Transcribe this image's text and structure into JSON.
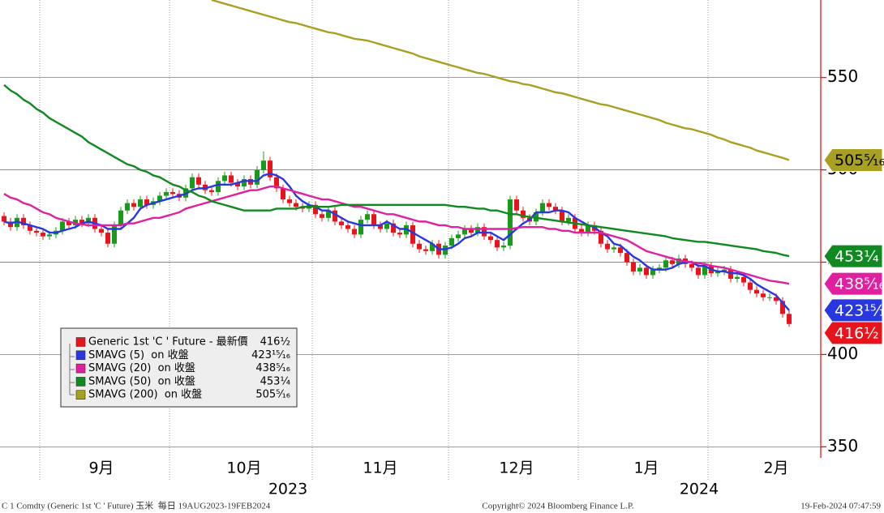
{
  "chart_data": {
    "type": "candlestick",
    "categories": [
      null,
      null,
      null,
      null,
      null,
      null,
      null,
      null,
      null,
      null,
      null,
      null,
      null,
      null,
      null,
      "9月",
      null,
      null,
      null,
      null,
      null,
      null,
      null,
      null,
      null,
      null,
      null,
      null,
      null,
      null,
      null,
      null,
      null,
      null,
      null,
      null,
      null,
      "10月",
      null,
      null,
      null,
      null,
      null,
      null,
      null,
      null,
      null,
      null,
      null,
      null,
      null,
      null,
      null,
      null,
      null,
      null,
      null,
      null,
      "11月",
      null,
      null,
      null,
      null,
      null,
      null,
      null,
      null,
      null,
      null,
      null,
      null,
      null,
      null,
      null,
      null,
      null,
      null,
      null,
      null,
      "12月",
      null,
      null,
      null,
      null,
      null,
      null,
      null,
      null,
      null,
      null,
      null,
      null,
      null,
      null,
      null,
      null,
      null,
      null,
      null,
      "1月",
      null,
      null,
      null,
      null,
      null,
      null,
      null,
      null,
      null,
      null,
      null,
      null,
      null,
      null,
      null,
      null,
      null,
      null,
      null,
      "2月",
      null,
      null
    ],
    "year_labels": [
      "2023",
      "2024"
    ],
    "ylim": [
      344,
      592
    ],
    "yticks": [
      350,
      400,
      450,
      500,
      550
    ],
    "grid": true,
    "series": [
      {
        "name": "Generic 1st 'C ' Future - 最新價",
        "type": "candlestick",
        "color": "#e8141c",
        "up_color": "#1a9a1a",
        "down_color": "#e8141c",
        "open": [
          475,
          472,
          469,
          474,
          470,
          467,
          466,
          464,
          465,
          467,
          472,
          470,
          473,
          471,
          474,
          468,
          466,
          460,
          470,
          478,
          482,
          480,
          484,
          481,
          483,
          486,
          488,
          487,
          485,
          490,
          496,
          492,
          489,
          488,
          494,
          497,
          493,
          491,
          495,
          492,
          500,
          505,
          496,
          490,
          484,
          482,
          480,
          479,
          481,
          476,
          474,
          478,
          472,
          470,
          468,
          465,
          473,
          476,
          470,
          468,
          471,
          466,
          465,
          470,
          460,
          457,
          456,
          460,
          454,
          459,
          463,
          465,
          468,
          466,
          469,
          464,
          462,
          458,
          459,
          484,
          478,
          474,
          472,
          477,
          482,
          480,
          478,
          472,
          474,
          468,
          466,
          470,
          467,
          460,
          457,
          458,
          455,
          450,
          445,
          447,
          443,
          446,
          447,
          451,
          449,
          452,
          449,
          447,
          443,
          448,
          444,
          445,
          446,
          441,
          442,
          439,
          435,
          433,
          431,
          431,
          429,
          422
        ],
        "high": [
          477,
          474,
          476,
          476,
          472,
          469,
          468,
          467,
          469,
          474,
          474,
          475,
          475,
          476,
          476,
          470,
          468,
          472,
          480,
          484,
          484,
          486,
          486,
          485,
          488,
          490,
          490,
          489,
          492,
          498,
          498,
          494,
          491,
          496,
          499,
          499,
          495,
          497,
          497,
          502,
          510,
          507,
          498,
          492,
          486,
          484,
          482,
          483,
          483,
          478,
          480,
          480,
          474,
          472,
          470,
          475,
          478,
          478,
          472,
          473,
          473,
          468,
          472,
          472,
          462,
          459,
          462,
          462,
          461,
          465,
          467,
          470,
          470,
          471,
          471,
          466,
          464,
          461,
          486,
          486,
          480,
          476,
          479,
          484,
          484,
          482,
          480,
          476,
          476,
          470,
          472,
          472,
          469,
          462,
          460,
          460,
          457,
          452,
          449,
          449,
          448,
          449,
          453,
          453,
          454,
          454,
          451,
          449,
          450,
          450,
          447,
          448,
          448,
          444,
          444,
          441,
          437,
          435,
          433,
          433,
          431,
          424
        ],
        "low": [
          470,
          467,
          467,
          468,
          465,
          464,
          462,
          462,
          463,
          465,
          468,
          468,
          469,
          469,
          466,
          464,
          458,
          458,
          468,
          476,
          478,
          478,
          479,
          479,
          481,
          484,
          485,
          483,
          483,
          488,
          490,
          487,
          486,
          486,
          492,
          491,
          489,
          489,
          490,
          490,
          498,
          494,
          488,
          482,
          480,
          478,
          477,
          477,
          474,
          472,
          472,
          470,
          468,
          466,
          463,
          463,
          471,
          468,
          466,
          466,
          464,
          463,
          463,
          458,
          455,
          454,
          454,
          452,
          452,
          457,
          461,
          463,
          464,
          464,
          462,
          460,
          456,
          456,
          457,
          476,
          472,
          470,
          470,
          475,
          478,
          476,
          470,
          470,
          466,
          464,
          464,
          465,
          458,
          455,
          455,
          453,
          448,
          443,
          443,
          441,
          441,
          444,
          445,
          447,
          447,
          447,
          445,
          441,
          441,
          442,
          442,
          443,
          439,
          439,
          437,
          433,
          431,
          429,
          429,
          427,
          420,
          415
        ],
        "close": [
          472,
          469,
          474,
          470,
          467,
          466,
          464,
          465,
          467,
          472,
          470,
          473,
          471,
          474,
          468,
          466,
          460,
          470,
          478,
          482,
          480,
          484,
          481,
          483,
          486,
          488,
          487,
          485,
          490,
          496,
          492,
          489,
          488,
          494,
          497,
          493,
          491,
          495,
          492,
          500,
          505,
          496,
          490,
          484,
          482,
          480,
          479,
          481,
          476,
          474,
          478,
          472,
          470,
          468,
          465,
          473,
          476,
          470,
          468,
          471,
          466,
          465,
          470,
          460,
          457,
          456,
          460,
          454,
          459,
          463,
          465,
          468,
          466,
          469,
          464,
          462,
          458,
          459,
          484,
          478,
          474,
          472,
          477,
          482,
          480,
          478,
          472,
          474,
          468,
          466,
          470,
          467,
          460,
          457,
          458,
          455,
          450,
          445,
          447,
          443,
          446,
          447,
          451,
          449,
          452,
          449,
          447,
          443,
          448,
          444,
          445,
          446,
          441,
          442,
          439,
          435,
          433,
          431,
          431,
          429,
          422,
          416.5
        ],
        "last": 416.5,
        "last_label": "416½"
      },
      {
        "name": "SMAVG (5)  on 收盤",
        "type": "line",
        "color": "#2838e0",
        "values": [
          472,
          471,
          472,
          471,
          470,
          469,
          468,
          466,
          466,
          467,
          468,
          469,
          471,
          472,
          471,
          470,
          468,
          468,
          468,
          471,
          474,
          479,
          481,
          482,
          483,
          484,
          485,
          486,
          487,
          489,
          490,
          490,
          491,
          492,
          492,
          492,
          493,
          494,
          494,
          494,
          497,
          498,
          497,
          495,
          491,
          486,
          483,
          481,
          480,
          478,
          478,
          476,
          474,
          472,
          471,
          470,
          470,
          470,
          470,
          472,
          470,
          468,
          468,
          466,
          464,
          462,
          460,
          457,
          457,
          458,
          460,
          463,
          464,
          466,
          466,
          466,
          464,
          462,
          465,
          468,
          471,
          473,
          477,
          477,
          477,
          478,
          478,
          477,
          474,
          472,
          470,
          469,
          466,
          464,
          460,
          459,
          456,
          453,
          451,
          448,
          446,
          446,
          446,
          447,
          449,
          450,
          450,
          448,
          448,
          446,
          445,
          445,
          444,
          444,
          443,
          441,
          438,
          436,
          434,
          432,
          428,
          423.9375
        ],
        "last": 423.9375,
        "last_label": "423¹⁵⁄₁₆"
      },
      {
        "name": "SMAVG (20)  on 收盤",
        "type": "line",
        "color": "#e020a0",
        "values": [
          487,
          485,
          484,
          482,
          481,
          479,
          477,
          476,
          474,
          473,
          472,
          471,
          470.5,
          470,
          470,
          470,
          470,
          470,
          470,
          471,
          471,
          472,
          473,
          474,
          474,
          475,
          476,
          477,
          479,
          480,
          481,
          482,
          483,
          484,
          485,
          486,
          487,
          488,
          489,
          489,
          490,
          491,
          491,
          490,
          489,
          488,
          487,
          486,
          485,
          484,
          484,
          483,
          482,
          481,
          480,
          480,
          479,
          478,
          477,
          476,
          476,
          475,
          474,
          473,
          472,
          472,
          471,
          470,
          470,
          469,
          469,
          468,
          468,
          468,
          468,
          468,
          468,
          468,
          468,
          468.5,
          469,
          469,
          469,
          469,
          468,
          468,
          467,
          467,
          466,
          466,
          466,
          466,
          466,
          465,
          464,
          463,
          462,
          460,
          458,
          456,
          455,
          454,
          453,
          452,
          451,
          450.5,
          450,
          449.5,
          449,
          448,
          447.5,
          447,
          446,
          445,
          444,
          443,
          442,
          441,
          440,
          439.5,
          439,
          438.3125
        ],
        "last": 438.3125,
        "last_label": "438⁵⁄₁₆"
      },
      {
        "name": "SMAVG (50)  on 收盤",
        "type": "line",
        "color": "#108a20",
        "values": [
          546,
          543,
          541,
          538,
          536,
          533,
          531,
          528,
          526,
          524,
          522,
          520,
          518,
          515,
          513,
          511,
          509,
          507,
          505,
          503,
          502,
          500,
          499,
          497,
          496,
          494,
          492,
          491,
          489,
          488,
          486,
          485,
          483,
          482,
          481,
          480,
          479,
          478,
          478,
          478,
          478,
          478,
          479,
          479,
          479,
          479,
          480,
          480,
          480,
          480,
          480,
          480.5,
          481,
          481,
          481,
          481,
          481,
          481,
          481,
          481,
          481,
          481,
          481,
          481,
          481,
          481,
          481,
          481,
          481,
          480.5,
          480,
          480,
          479.5,
          479,
          479,
          478,
          478,
          477,
          476,
          476,
          475,
          474.5,
          474,
          473.5,
          473,
          472.5,
          472,
          471.5,
          471,
          470.5,
          470,
          469.5,
          469,
          468.5,
          468,
          467.5,
          467,
          466.5,
          466,
          465.5,
          465,
          464.5,
          464,
          463,
          462.5,
          462,
          461.5,
          461,
          461,
          460.5,
          460,
          459.5,
          459,
          458.5,
          458,
          457.5,
          457,
          456,
          455.5,
          455,
          454,
          453.25
        ],
        "last": 453.25,
        "last_label": "453¼"
      },
      {
        "name": "SMAVG (200)  on 收盤",
        "type": "line",
        "color": "#a8a020",
        "values": [
          null,
          null,
          null,
          null,
          null,
          null,
          null,
          null,
          null,
          null,
          null,
          null,
          null,
          null,
          null,
          null,
          null,
          null,
          null,
          null,
          null,
          null,
          null,
          null,
          null,
          null,
          null,
          null,
          null,
          null,
          null,
          null,
          592,
          591,
          590,
          589,
          588,
          587,
          586,
          585,
          584,
          583,
          582,
          581,
          580,
          579.5,
          578.5,
          577.5,
          576.5,
          575.5,
          574.5,
          574,
          573,
          572,
          571,
          570.5,
          570,
          569,
          568,
          567,
          566,
          565,
          564,
          563,
          561.5,
          560.5,
          559.5,
          558.5,
          557.5,
          556.5,
          555.5,
          554.5,
          553.5,
          552.5,
          552,
          551,
          550,
          549,
          548,
          547.5,
          546.5,
          546,
          545,
          544,
          543,
          542,
          541.5,
          540.5,
          539.5,
          538.5,
          537.5,
          536.5,
          535.5,
          535,
          534,
          533,
          532,
          531,
          530,
          529,
          528,
          527,
          525.5,
          524.5,
          523.5,
          522.5,
          522,
          521,
          520,
          519,
          517.5,
          516.5,
          515,
          514,
          513,
          512,
          510.5,
          509.5,
          508.5,
          507.5,
          506.5,
          505.3125
        ],
        "last": 505.3125,
        "last_label": "505⁵⁄₁₆"
      }
    ],
    "footer": {
      "left": "C 1 Comdty (Generic 1st 'C ' Future) 玉米  每日 19AUG2023-19FEB2024",
      "center": "Copyright© 2024 Bloomberg Finance L.P.",
      "right": "19-Feb-2024 07:47:59"
    }
  }
}
